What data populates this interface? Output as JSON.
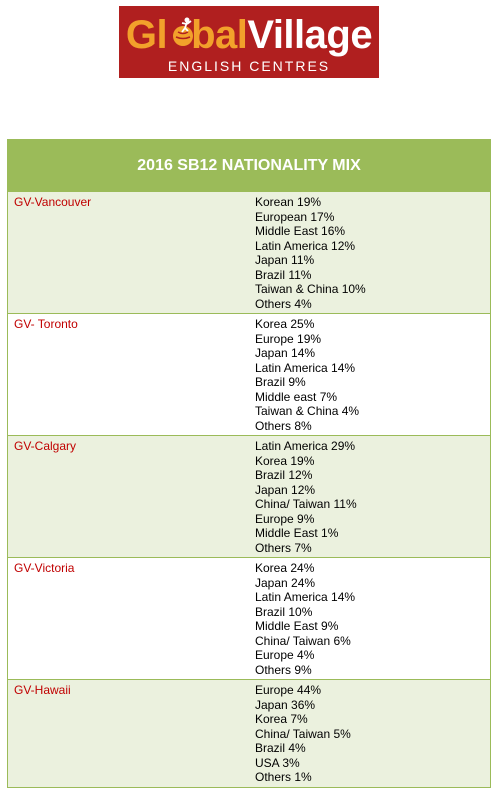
{
  "logo": {
    "line1_a": "Gl",
    "line1_b": "bal",
    "line1_c": "Village",
    "line2": "ENGLISH CENTRES",
    "colors": {
      "background": "#b01f1f",
      "orange": "#f2a12b",
      "white": "#ffffff"
    }
  },
  "table": {
    "title": "2016 SB12 NATIONALITY MIX",
    "colors": {
      "header": "#9bbb59",
      "shaded": "#ebf1de",
      "campus_text": "#c00000"
    },
    "rows": [
      {
        "campus": "GV-Vancouver",
        "mix": [
          "Korean 19%",
          "European 17%",
          "Middle East 16%",
          "Latin America 12%",
          "Japan 11%",
          "Brazil 11%",
          "Taiwan & China 10%",
          "Others 4%"
        ]
      },
      {
        "campus": "GV- Toronto",
        "mix": [
          "Korea 25%",
          "Europe 19%",
          "Japan 14%",
          "Latin America 14%",
          "Brazil 9%",
          "Middle east 7%",
          "Taiwan & China 4%",
          "Others 8%"
        ]
      },
      {
        "campus": "GV-Calgary",
        "mix": [
          "Latin America 29%",
          "Korea 19%",
          "Brazil 12%",
          "Japan 12%",
          "China/ Taiwan 11%",
          "Europe 9%",
          "Middle East 1%",
          "Others 7%"
        ]
      },
      {
        "campus": "GV-Victoria",
        "mix": [
          "Korea 24%",
          "Japan 24%",
          "Latin America 14%",
          "Brazil 10%",
          "Middle East 9%",
          "China/ Taiwan 6%",
          "Europe 4%",
          "Others 9%"
        ]
      },
      {
        "campus": "GV-Hawaii",
        "mix": [
          "Europe 44%",
          "Japan 36%",
          "Korea 7%",
          "China/ Taiwan 5%",
          "Brazil 4%",
          "USA 3%",
          "Others 1%"
        ]
      }
    ]
  }
}
